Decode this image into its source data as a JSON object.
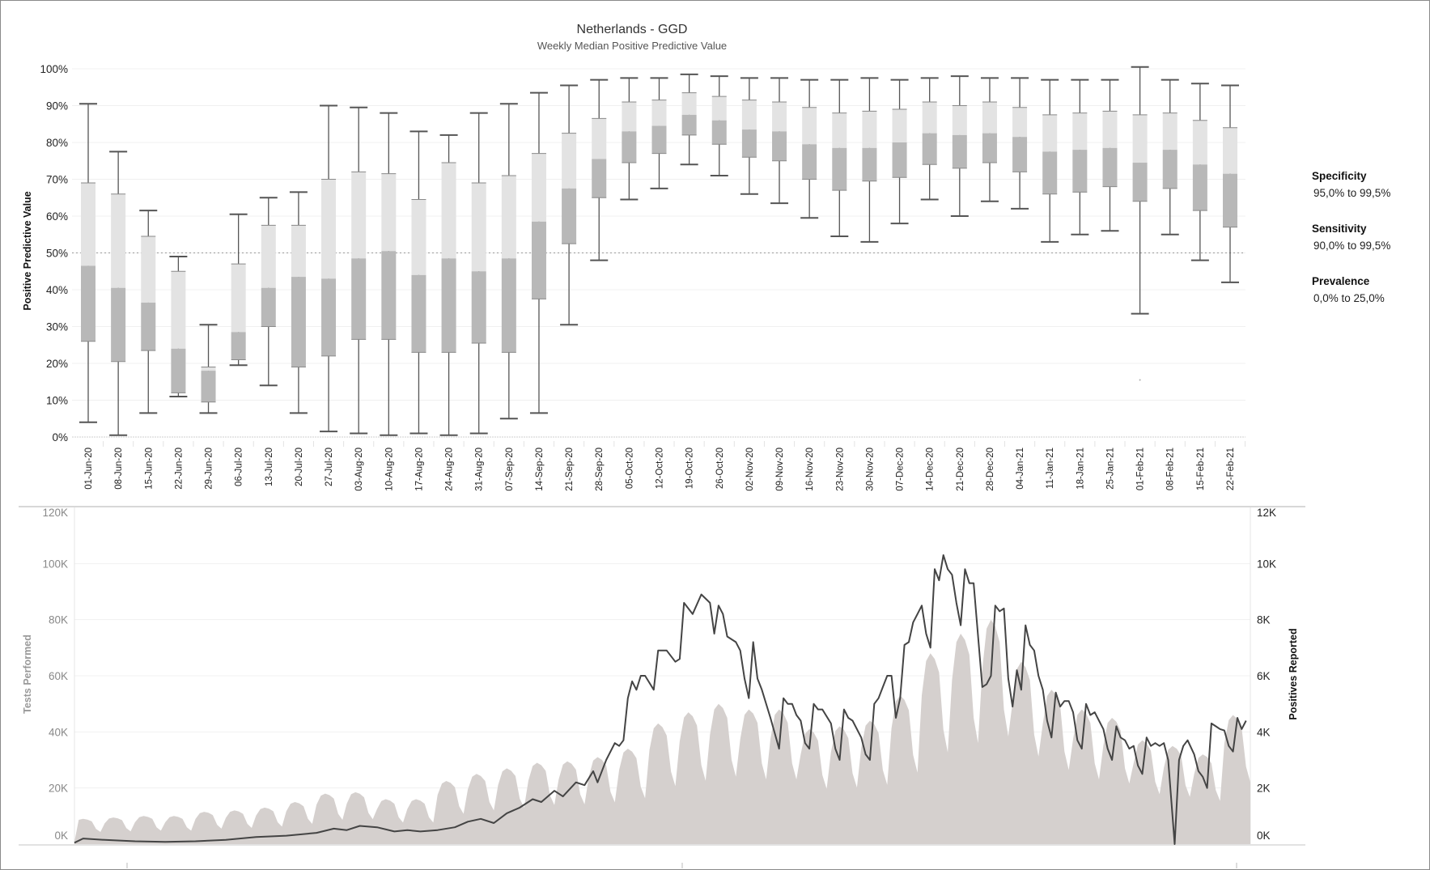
{
  "chart_data": [
    {
      "type": "box",
      "title": "Netherlands - GGD",
      "subtitle": "Weekly Median Positive Predictive Value",
      "ylabel": "Positive Predictive Value",
      "ylim": [
        0,
        100
      ],
      "yticks": [
        "0%",
        "10%",
        "20%",
        "30%",
        "40%",
        "50%",
        "60%",
        "70%",
        "80%",
        "90%",
        "100%"
      ],
      "reference_line": 50,
      "grid": true,
      "colors": {
        "lower_box": "#b8b8b8",
        "upper_box": "#e3e3e3",
        "whisker": "#555555"
      },
      "categories": [
        "01-Jun-20",
        "08-Jun-20",
        "15-Jun-20",
        "22-Jun-20",
        "29-Jun-20",
        "06-Jul-20",
        "13-Jul-20",
        "20-Jul-20",
        "27-Jul-20",
        "03-Aug-20",
        "10-Aug-20",
        "17-Aug-20",
        "24-Aug-20",
        "31-Aug-20",
        "07-Sep-20",
        "14-Sep-20",
        "21-Sep-20",
        "28-Sep-20",
        "05-Oct-20",
        "12-Oct-20",
        "19-Oct-20",
        "26-Oct-20",
        "02-Nov-20",
        "09-Nov-20",
        "16-Nov-20",
        "23-Nov-20",
        "30-Nov-20",
        "07-Dec-20",
        "14-Dec-20",
        "21-Dec-20",
        "28-Dec-20",
        "04-Jan-21",
        "11-Jan-21",
        "18-Jan-21",
        "25-Jan-21",
        "01-Feb-21",
        "08-Feb-21",
        "15-Feb-21",
        "22-Feb-21"
      ],
      "boxes_min_q1_median_q3_max": [
        [
          4,
          26,
          46.5,
          69,
          90.5
        ],
        [
          0.5,
          20.5,
          40.5,
          66,
          77.5
        ],
        [
          6.5,
          23.5,
          36.5,
          54.5,
          61.5
        ],
        [
          11,
          12,
          24,
          45,
          49
        ],
        [
          6.5,
          9.5,
          18,
          19,
          30.5
        ],
        [
          19.5,
          21,
          28.5,
          47,
          60.5
        ],
        [
          14,
          30,
          40.5,
          57.5,
          65
        ],
        [
          6.5,
          19,
          43.5,
          57.5,
          66.5
        ],
        [
          1.5,
          22,
          43,
          70,
          90
        ],
        [
          1,
          26.5,
          48.5,
          72,
          89.5
        ],
        [
          0.5,
          26.5,
          50.5,
          71.5,
          88
        ],
        [
          1,
          23,
          44,
          64.5,
          83
        ],
        [
          0.5,
          23,
          48.5,
          74.5,
          82
        ],
        [
          1,
          25.5,
          45,
          69,
          88
        ],
        [
          5,
          23,
          48.5,
          71,
          90.5
        ],
        [
          6.5,
          37.5,
          58.5,
          77,
          93.5
        ],
        [
          30.5,
          52.5,
          67.5,
          82.5,
          95.5
        ],
        [
          48,
          65,
          75.5,
          86.5,
          97
        ],
        [
          64.5,
          74.5,
          83,
          91,
          97.5
        ],
        [
          67.5,
          77,
          84.5,
          91.5,
          97.5
        ],
        [
          74,
          82,
          87.5,
          93.5,
          98.5
        ],
        [
          71,
          79.5,
          86,
          92.5,
          98
        ],
        [
          66,
          76,
          83.5,
          91.5,
          97.5
        ],
        [
          63.5,
          75,
          83,
          91,
          97.5
        ],
        [
          59.5,
          70,
          79.5,
          89.5,
          97
        ],
        [
          54.5,
          67,
          78.5,
          88,
          97
        ],
        [
          53,
          69.5,
          78.5,
          88.5,
          97.5
        ],
        [
          58,
          70.5,
          80,
          89,
          97
        ],
        [
          64.5,
          74,
          82.5,
          91,
          97.5
        ],
        [
          60,
          73,
          82,
          90,
          98
        ],
        [
          64,
          74.5,
          82.5,
          91,
          97.5
        ],
        [
          62,
          72,
          81.5,
          89.5,
          97.5
        ],
        [
          53,
          66,
          77.5,
          87.5,
          97
        ],
        [
          55,
          66.5,
          78,
          88,
          97
        ],
        [
          56,
          68,
          78.5,
          88.5,
          97
        ],
        [
          33.5,
          64,
          74.5,
          87.5,
          100.5
        ],
        [
          55,
          67.5,
          78,
          88,
          97
        ],
        [
          48,
          61.5,
          74,
          86,
          96
        ],
        [
          42,
          57,
          71.5,
          84,
          95.5
        ]
      ],
      "outliers": [
        {
          "category": "01-Feb-21",
          "value": 15.5
        }
      ]
    },
    {
      "type": "area+line",
      "x_start": "01-Jun-20",
      "x_days": 273,
      "left_axis": {
        "label": "Tests Performed",
        "ylim": [
          0,
          120
        ],
        "unit": "K",
        "ticks": [
          "0K",
          "20K",
          "40K",
          "60K",
          "80K",
          "100K",
          "120K"
        ]
      },
      "right_axis": {
        "label": "Positives Reported",
        "ylim": [
          0,
          12
        ],
        "unit": "K",
        "ticks": [
          "0K",
          "2K",
          "4K",
          "6K",
          "8K",
          "10K",
          "12K"
        ]
      },
      "colors": {
        "area": "#d5d0ce",
        "line": "#444444"
      },
      "tests_weekly_peak_K": [
        9,
        9.5,
        10,
        10,
        11.5,
        12,
        13,
        15,
        18,
        18.5,
        16,
        16,
        22.5,
        25,
        27,
        29,
        29.5,
        31,
        34,
        43,
        47,
        50,
        48,
        48,
        41,
        42,
        44,
        53,
        68,
        75,
        80,
        65,
        55,
        48,
        45,
        37,
        35,
        32,
        46,
        52
      ],
      "tests_weekday_factor": [
        0.78,
        0.96,
        1.0,
        0.97,
        0.9,
        0.6,
        0.48
      ],
      "positives_day_K": [
        [
          0,
          0.05
        ],
        [
          2,
          0.2
        ],
        [
          7,
          0.15
        ],
        [
          14,
          0.1
        ],
        [
          21,
          0.08
        ],
        [
          28,
          0.1
        ],
        [
          35,
          0.15
        ],
        [
          42,
          0.25
        ],
        [
          49,
          0.3
        ],
        [
          56,
          0.4
        ],
        [
          60,
          0.55
        ],
        [
          63,
          0.5
        ],
        [
          66,
          0.65
        ],
        [
          70,
          0.6
        ],
        [
          74,
          0.45
        ],
        [
          77,
          0.5
        ],
        [
          80,
          0.45
        ],
        [
          84,
          0.5
        ],
        [
          88,
          0.6
        ],
        [
          91,
          0.8
        ],
        [
          94,
          0.9
        ],
        [
          97,
          0.75
        ],
        [
          100,
          1.1
        ],
        [
          103,
          1.3
        ],
        [
          106,
          1.6
        ],
        [
          108,
          1.5
        ],
        [
          111,
          1.9
        ],
        [
          113,
          1.7
        ],
        [
          116,
          2.2
        ],
        [
          118,
          2.1
        ],
        [
          120,
          2.6
        ],
        [
          121,
          2.2
        ],
        [
          123,
          3.0
        ],
        [
          125,
          3.6
        ],
        [
          126,
          3.5
        ],
        [
          127,
          3.7
        ],
        [
          128,
          5.2
        ],
        [
          129,
          5.8
        ],
        [
          130,
          5.5
        ],
        [
          131,
          6.0
        ],
        [
          132,
          6.0
        ],
        [
          134,
          5.5
        ],
        [
          135,
          6.9
        ],
        [
          137,
          6.9
        ],
        [
          139,
          6.5
        ],
        [
          140,
          6.6
        ],
        [
          141,
          8.6
        ],
        [
          143,
          8.2
        ],
        [
          145,
          8.9
        ],
        [
          147,
          8.6
        ],
        [
          148,
          7.5
        ],
        [
          149,
          8.5
        ],
        [
          150,
          8.2
        ],
        [
          151,
          7.4
        ],
        [
          153,
          7.2
        ],
        [
          154,
          6.9
        ],
        [
          155,
          5.9
        ],
        [
          156,
          5.2
        ],
        [
          157,
          7.2
        ],
        [
          158,
          5.9
        ],
        [
          159,
          5.5
        ],
        [
          161,
          4.5
        ],
        [
          163,
          3.4
        ],
        [
          164,
          5.2
        ],
        [
          165,
          5.0
        ],
        [
          166,
          5.0
        ],
        [
          167,
          4.6
        ],
        [
          168,
          4.4
        ],
        [
          169,
          3.6
        ],
        [
          170,
          3.4
        ],
        [
          171,
          5.0
        ],
        [
          172,
          4.8
        ],
        [
          173,
          4.8
        ],
        [
          175,
          4.3
        ],
        [
          176,
          3.4
        ],
        [
          177,
          3.0
        ],
        [
          178,
          4.8
        ],
        [
          179,
          4.5
        ],
        [
          180,
          4.4
        ],
        [
          182,
          3.8
        ],
        [
          183,
          3.2
        ],
        [
          184,
          3.0
        ],
        [
          185,
          5.0
        ],
        [
          186,
          5.2
        ],
        [
          187,
          5.6
        ],
        [
          188,
          6.0
        ],
        [
          189,
          6.0
        ],
        [
          190,
          4.5
        ],
        [
          191,
          5.2
        ],
        [
          192,
          7.1
        ],
        [
          193,
          7.2
        ],
        [
          194,
          7.9
        ],
        [
          195,
          8.2
        ],
        [
          196,
          8.5
        ],
        [
          197,
          7.5
        ],
        [
          198,
          7.0
        ],
        [
          199,
          9.8
        ],
        [
          200,
          9.4
        ],
        [
          201,
          10.3
        ],
        [
          202,
          9.8
        ],
        [
          203,
          9.6
        ],
        [
          204,
          8.6
        ],
        [
          205,
          7.8
        ],
        [
          206,
          9.8
        ],
        [
          207,
          9.3
        ],
        [
          208,
          9.3
        ],
        [
          210,
          5.6
        ],
        [
          211,
          5.7
        ],
        [
          212,
          6.0
        ],
        [
          213,
          8.5
        ],
        [
          214,
          8.3
        ],
        [
          215,
          8.4
        ],
        [
          216,
          5.9
        ],
        [
          217,
          4.9
        ],
        [
          218,
          6.2
        ],
        [
          219,
          5.5
        ],
        [
          220,
          7.8
        ],
        [
          221,
          7.1
        ],
        [
          222,
          6.9
        ],
        [
          223,
          6.0
        ],
        [
          224,
          5.5
        ],
        [
          225,
          4.4
        ],
        [
          226,
          3.8
        ],
        [
          227,
          5.4
        ],
        [
          228,
          4.9
        ],
        [
          229,
          5.1
        ],
        [
          230,
          5.1
        ],
        [
          231,
          4.7
        ],
        [
          232,
          3.7
        ],
        [
          233,
          3.4
        ],
        [
          234,
          5.0
        ],
        [
          235,
          4.6
        ],
        [
          236,
          4.7
        ],
        [
          237,
          4.4
        ],
        [
          238,
          4.1
        ],
        [
          239,
          3.4
        ],
        [
          240,
          3.0
        ],
        [
          241,
          4.2
        ],
        [
          242,
          3.8
        ],
        [
          243,
          3.7
        ],
        [
          244,
          3.4
        ],
        [
          245,
          3.5
        ],
        [
          246,
          2.8
        ],
        [
          247,
          2.5
        ],
        [
          248,
          3.8
        ],
        [
          249,
          3.5
        ],
        [
          250,
          3.6
        ],
        [
          251,
          3.5
        ],
        [
          252,
          3.6
        ],
        [
          253,
          3.0
        ],
        [
          254.5,
          0
        ],
        [
          255.5,
          3.0
        ],
        [
          256.5,
          3.5
        ],
        [
          257.5,
          3.7
        ],
        [
          259,
          3.2
        ],
        [
          260,
          2.6
        ],
        [
          261,
          2.4
        ],
        [
          262,
          2.0
        ],
        [
          263,
          4.3
        ],
        [
          264,
          4.2
        ],
        [
          265,
          4.1
        ],
        [
          266,
          4.05
        ],
        [
          267,
          3.5
        ],
        [
          268,
          3.3
        ],
        [
          269,
          4.5
        ],
        [
          270,
          4.1
        ],
        [
          271,
          4.4
        ]
      ]
    }
  ],
  "legend": [
    {
      "label": "Specificity",
      "value": "95,0% to 99,5%"
    },
    {
      "label": "Sensitivity",
      "value": "90,0% to 99,5%"
    },
    {
      "label": "Prevalence",
      "value": "0,0% to 25,0%"
    }
  ]
}
